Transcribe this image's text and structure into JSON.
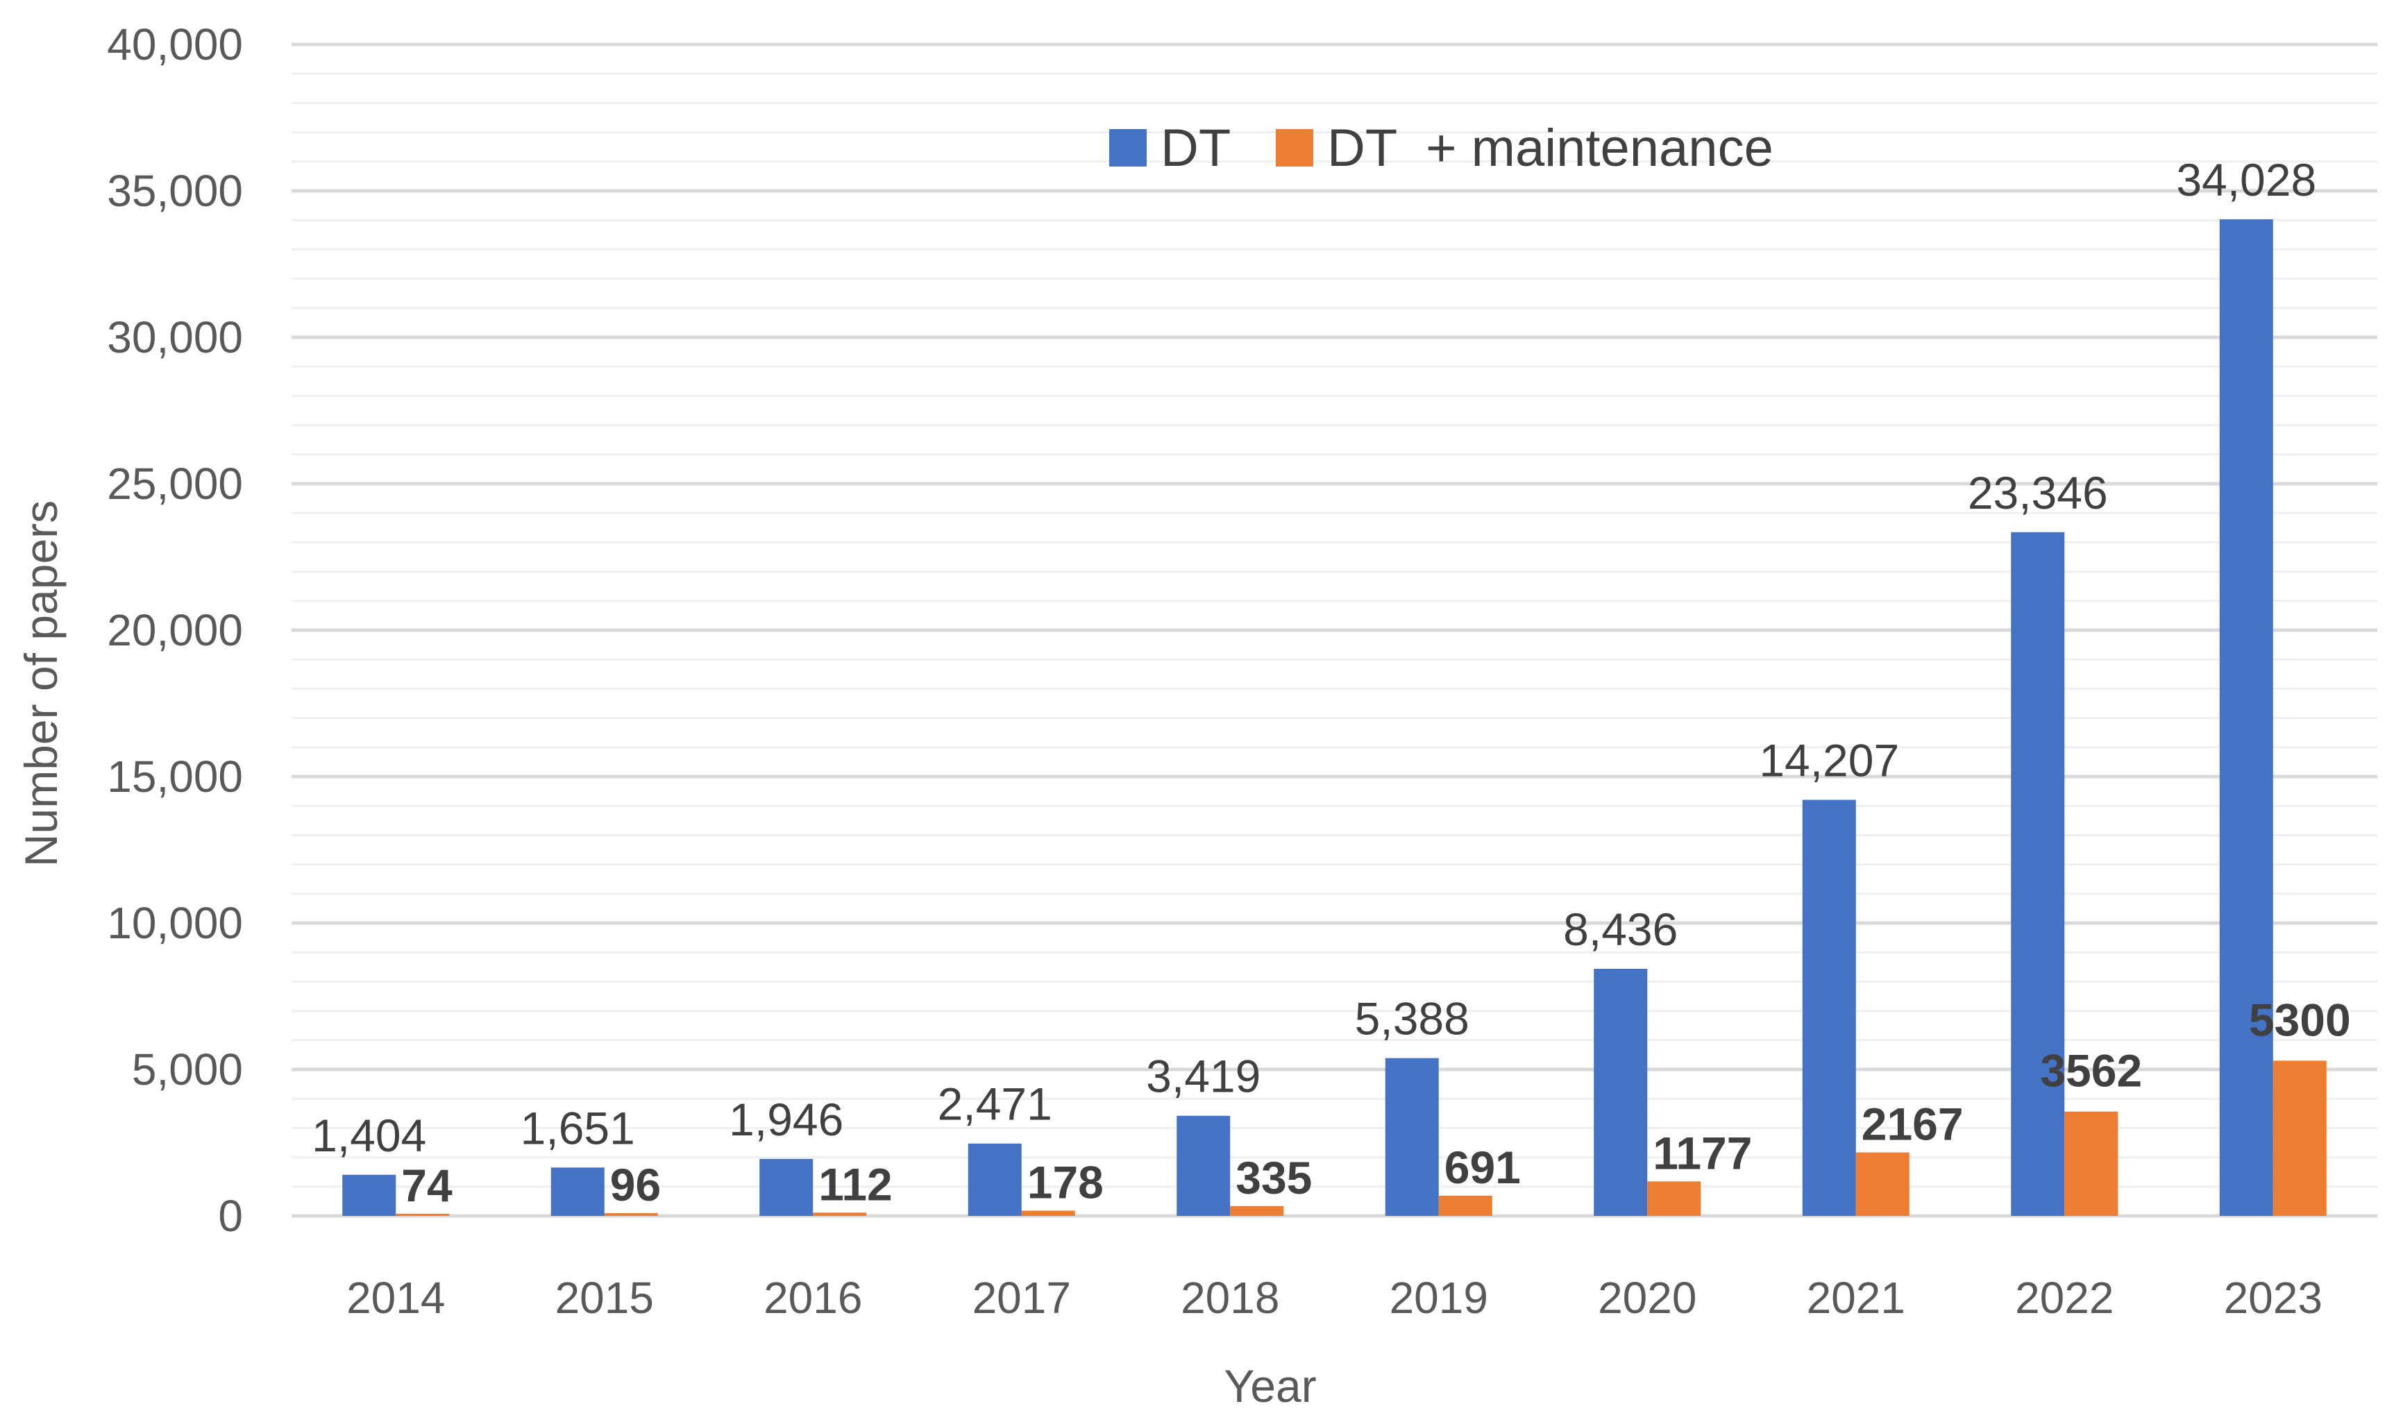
{
  "chart_data": {
    "type": "bar",
    "title": "",
    "xlabel": "Year",
    "ylabel": "Number of papers",
    "ylim": [
      0,
      40000
    ],
    "yticks": [
      0,
      5000,
      10000,
      15000,
      20000,
      25000,
      30000,
      35000,
      40000
    ],
    "ytick_labels": [
      "0",
      "5,000",
      "10,000",
      "15,000",
      "20,000",
      "25,000",
      "30,000",
      "35,000",
      "40,000"
    ],
    "grid": "horizontal",
    "legend_position": "top-center",
    "categories": [
      "2014",
      "2015",
      "2016",
      "2017",
      "2018",
      "2019",
      "2020",
      "2021",
      "2022",
      "2023"
    ],
    "series": [
      {
        "name": "DT",
        "color": "#4472C4",
        "values": [
          1404,
          1651,
          1946,
          2471,
          3419,
          5388,
          8436,
          14207,
          23346,
          34028
        ],
        "data_labels": [
          "1,404",
          "1,651",
          "1,946",
          "2,471",
          "3,419",
          "5,388",
          "8,436",
          "14,207",
          "23,346",
          "34,028"
        ]
      },
      {
        "name": "DT  + maintenance",
        "color": "#ED7D31",
        "values": [
          74,
          96,
          112,
          178,
          335,
          691,
          1177,
          2167,
          3562,
          5300
        ],
        "data_labels": [
          "74",
          "96",
          "112",
          "178",
          "335",
          "691",
          "1177",
          "2167",
          "3562",
          "5300"
        ]
      }
    ]
  }
}
